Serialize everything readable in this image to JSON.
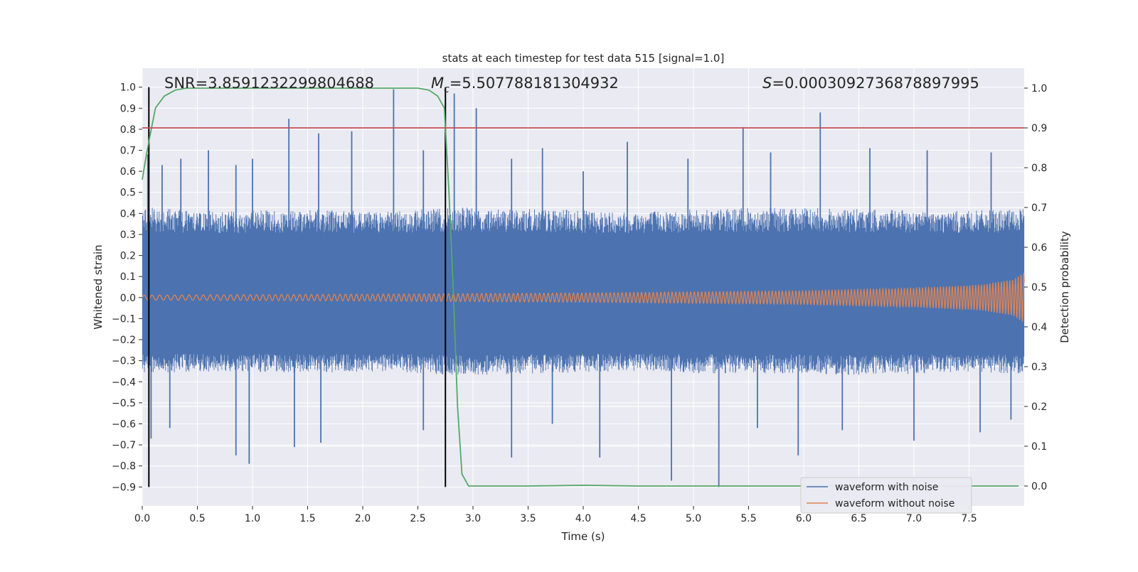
{
  "chart_data": {
    "type": "line",
    "title": "stats at each timestep for test data 515 [signal=1.0]",
    "xlabel": "Time (s)",
    "ylabel_left": "Whitened strain",
    "ylabel_right": "Detection probability",
    "xlim": [
      0,
      8
    ],
    "ylim_left": [
      -0.99,
      1.09
    ],
    "ylim_right": [
      -0.05,
      1.05
    ],
    "x_ticks": [
      "0.0",
      "0.5",
      "1.0",
      "1.5",
      "2.0",
      "2.5",
      "3.0",
      "3.5",
      "4.0",
      "4.5",
      "5.0",
      "5.5",
      "6.0",
      "6.5",
      "7.0",
      "7.5"
    ],
    "y_ticks_left": [
      "1.0",
      "0.9",
      "0.8",
      "0.7",
      "0.6",
      "0.5",
      "0.4",
      "0.3",
      "0.2",
      "0.1",
      "0.0",
      "−0.1",
      "−0.2",
      "−0.3",
      "−0.4",
      "−0.5",
      "−0.6",
      "−0.7",
      "−0.8",
      "−0.9"
    ],
    "y_ticks_right": [
      "1.0",
      "0.9",
      "0.8",
      "0.7",
      "0.6",
      "0.5",
      "0.4",
      "0.3",
      "0.2",
      "0.1",
      "0.0"
    ],
    "stats": {
      "snr": "SNR=3.8591232299804688",
      "mc_symbol": "M",
      "mc_sub": "c",
      "mc_value": "=5.507788181304932",
      "s_symbol": "S",
      "s_value": "=0.0003092736878897995"
    },
    "threshold": {
      "axis": "right",
      "value": 0.9,
      "color": "#c44e52"
    },
    "vertical_markers": [
      {
        "x": 0.06,
        "y_range": [
          -0.9,
          1.0
        ]
      },
      {
        "x": 2.75,
        "y_range": [
          -0.9,
          1.0
        ]
      }
    ],
    "series": [
      {
        "name": "waveform with noise",
        "axis": "left",
        "color": "#4c72b0",
        "envelope_pos": [
          0.43,
          0.41,
          0.42,
          0.41,
          0.43,
          0.42,
          0.41,
          0.42,
          0.43,
          0.42,
          0.41,
          0.42
        ],
        "envelope_neg": [
          -0.36,
          -0.35,
          -0.36,
          -0.35,
          -0.37,
          -0.36,
          -0.35,
          -0.36,
          -0.36,
          -0.37,
          -0.36,
          -0.36
        ],
        "band_pos": 0.25,
        "band_neg": -0.22,
        "spikes": [
          {
            "x": 0.05,
            "y": 0.68
          },
          {
            "x": 0.18,
            "y": 0.63
          },
          {
            "x": 0.35,
            "y": 0.66
          },
          {
            "x": 0.6,
            "y": 0.7
          },
          {
            "x": 0.85,
            "y": 0.63
          },
          {
            "x": 1.0,
            "y": 0.66
          },
          {
            "x": 1.33,
            "y": 0.85
          },
          {
            "x": 1.6,
            "y": 0.78
          },
          {
            "x": 1.9,
            "y": 0.79
          },
          {
            "x": 2.28,
            "y": 0.99
          },
          {
            "x": 2.55,
            "y": 0.7
          },
          {
            "x": 2.83,
            "y": 0.97
          },
          {
            "x": 3.03,
            "y": 0.9
          },
          {
            "x": 3.35,
            "y": 0.66
          },
          {
            "x": 3.63,
            "y": 0.71
          },
          {
            "x": 4.0,
            "y": 0.6
          },
          {
            "x": 4.4,
            "y": 0.74
          },
          {
            "x": 4.95,
            "y": 0.66
          },
          {
            "x": 5.45,
            "y": 0.81
          },
          {
            "x": 5.7,
            "y": 0.69
          },
          {
            "x": 6.15,
            "y": 0.88
          },
          {
            "x": 6.6,
            "y": 0.71
          },
          {
            "x": 7.12,
            "y": 0.7
          },
          {
            "x": 7.7,
            "y": 0.69
          },
          {
            "x": 0.08,
            "y": -0.67
          },
          {
            "x": 0.25,
            "y": -0.62
          },
          {
            "x": 0.85,
            "y": -0.75
          },
          {
            "x": 0.97,
            "y": -0.79
          },
          {
            "x": 1.38,
            "y": -0.71
          },
          {
            "x": 1.62,
            "y": -0.69
          },
          {
            "x": 2.55,
            "y": -0.63
          },
          {
            "x": 3.35,
            "y": -0.76
          },
          {
            "x": 3.72,
            "y": -0.6
          },
          {
            "x": 4.15,
            "y": -0.76
          },
          {
            "x": 4.8,
            "y": -0.87
          },
          {
            "x": 5.23,
            "y": -0.9
          },
          {
            "x": 5.58,
            "y": -0.62
          },
          {
            "x": 5.95,
            "y": -0.75
          },
          {
            "x": 6.35,
            "y": -0.63
          },
          {
            "x": 7.0,
            "y": -0.68
          },
          {
            "x": 7.6,
            "y": -0.64
          },
          {
            "x": 7.88,
            "y": -0.58
          }
        ]
      },
      {
        "name": "waveform without noise",
        "axis": "left",
        "color": "#dd8452",
        "amplitude": [
          {
            "x": 0.0,
            "a": 0.012
          },
          {
            "x": 2.0,
            "a": 0.016
          },
          {
            "x": 4.0,
            "a": 0.022
          },
          {
            "x": 6.0,
            "a": 0.032
          },
          {
            "x": 7.0,
            "a": 0.045
          },
          {
            "x": 7.6,
            "a": 0.06
          },
          {
            "x": 7.9,
            "a": 0.085
          },
          {
            "x": 8.0,
            "a": 0.12
          }
        ]
      },
      {
        "name": "",
        "axis": "right",
        "color": "#55a868",
        "points": [
          [
            0.0,
            0.77
          ],
          [
            0.03,
            0.82
          ],
          [
            0.07,
            0.88
          ],
          [
            0.12,
            0.95
          ],
          [
            0.2,
            0.98
          ],
          [
            0.3,
            0.995
          ],
          [
            0.4,
            1.0
          ],
          [
            0.6,
            1.0
          ],
          [
            1.0,
            1.0
          ],
          [
            1.5,
            1.0
          ],
          [
            2.0,
            1.0
          ],
          [
            2.5,
            1.0
          ],
          [
            2.6,
            0.995
          ],
          [
            2.68,
            0.98
          ],
          [
            2.74,
            0.95
          ],
          [
            2.78,
            0.75
          ],
          [
            2.82,
            0.5
          ],
          [
            2.86,
            0.2
          ],
          [
            2.9,
            0.03
          ],
          [
            2.96,
            0.0
          ],
          [
            3.5,
            0.0
          ],
          [
            4.0,
            0.002
          ],
          [
            4.5,
            0.0
          ],
          [
            5.0,
            0.0
          ],
          [
            6.0,
            0.0
          ],
          [
            7.0,
            0.0
          ],
          [
            7.95,
            0.0
          ]
        ]
      }
    ],
    "legend": {
      "placement": "lower-right",
      "entries": [
        "waveform with noise",
        "waveform without noise"
      ]
    },
    "grid": true,
    "background": "#eaeaf2"
  }
}
